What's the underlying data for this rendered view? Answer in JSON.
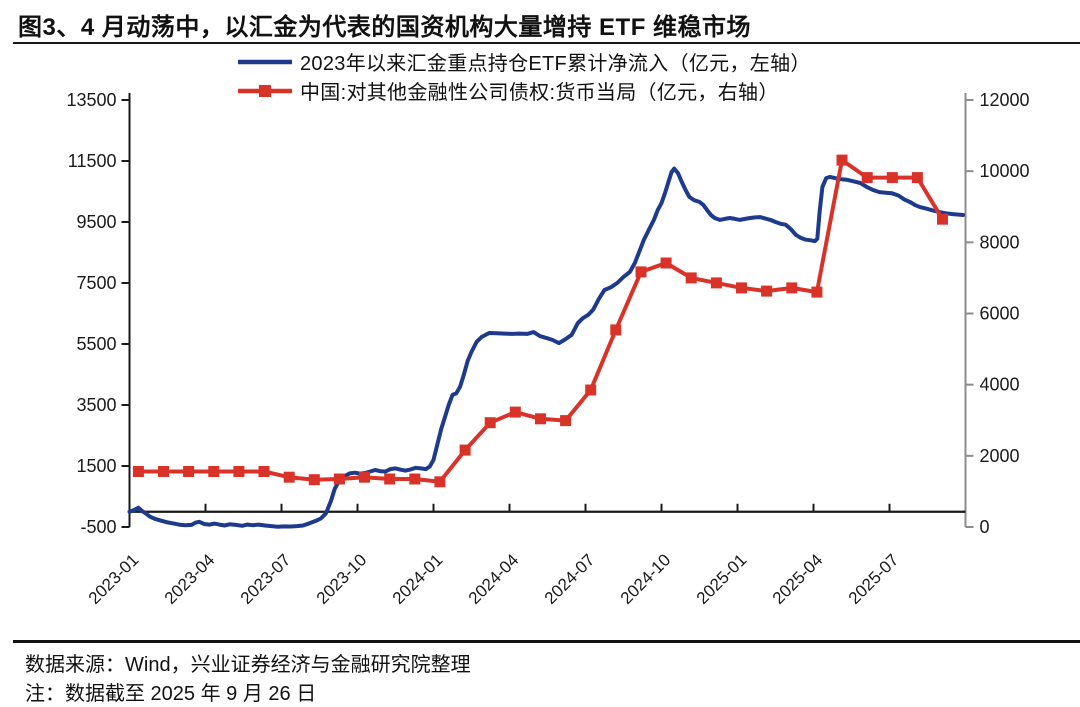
{
  "title": "图3、4 月动荡中，以汇金为代表的国资机构大量增持 ETF 维稳市场",
  "footer": {
    "source": "数据来源：Wind，兴业证券经济与金融研究院整理",
    "note": "注：数据截至 2025 年 9 月 26 日"
  },
  "chart_data": {
    "type": "line",
    "axis_color": "#1a1a1a",
    "right_spine_color": "#8c8c8c",
    "months_span": 33,
    "x_axis": {
      "tick_labels": [
        "2023-01",
        "2023-04",
        "2023-07",
        "2023-10",
        "2024-01",
        "2024-04",
        "2024-07",
        "2024-10",
        "2025-01",
        "2025-04",
        "2025-07"
      ],
      "tick_month_index": [
        0,
        3,
        6,
        9,
        12,
        15,
        18,
        21,
        24,
        27,
        30
      ]
    },
    "left_axis": {
      "min": -500,
      "max": 13500,
      "step": 2000,
      "ticks": [
        13500,
        11500,
        9500,
        7500,
        5500,
        3500,
        1500,
        -500
      ]
    },
    "right_axis": {
      "min": 0,
      "max": 12000,
      "step": 2000,
      "ticks": [
        12000,
        10000,
        8000,
        6000,
        4000,
        2000,
        0
      ]
    },
    "series": [
      {
        "name": "2023年以来汇金重点持仓ETF累计净流入（亿元，左轴）",
        "axis": "left",
        "color": "#1e3a8c",
        "width": 4,
        "marker": "none",
        "points": [
          [
            0,
            0
          ],
          [
            0.2,
            60
          ],
          [
            0.35,
            130
          ],
          [
            0.5,
            20
          ],
          [
            0.65,
            -60
          ],
          [
            0.8,
            -160
          ],
          [
            1.0,
            -230
          ],
          [
            1.2,
            -280
          ],
          [
            1.45,
            -340
          ],
          [
            1.7,
            -380
          ],
          [
            1.95,
            -420
          ],
          [
            2.2,
            -440
          ],
          [
            2.45,
            -430
          ],
          [
            2.6,
            -360
          ],
          [
            2.75,
            -330
          ],
          [
            2.95,
            -400
          ],
          [
            3.15,
            -420
          ],
          [
            3.35,
            -390
          ],
          [
            3.55,
            -420
          ],
          [
            3.75,
            -450
          ],
          [
            3.95,
            -410
          ],
          [
            4.2,
            -430
          ],
          [
            4.45,
            -460
          ],
          [
            4.65,
            -420
          ],
          [
            4.85,
            -440
          ],
          [
            5.1,
            -420
          ],
          [
            5.35,
            -450
          ],
          [
            5.6,
            -470
          ],
          [
            5.85,
            -490
          ],
          [
            6.1,
            -480
          ],
          [
            6.35,
            -485
          ],
          [
            6.6,
            -470
          ],
          [
            6.85,
            -450
          ],
          [
            7.1,
            -380
          ],
          [
            7.35,
            -300
          ],
          [
            7.55,
            -220
          ],
          [
            7.75,
            -60
          ],
          [
            7.95,
            350
          ],
          [
            8.1,
            750
          ],
          [
            8.3,
            1050
          ],
          [
            8.5,
            1170
          ],
          [
            8.7,
            1260
          ],
          [
            8.9,
            1280
          ],
          [
            9.1,
            1250
          ],
          [
            9.3,
            1270
          ],
          [
            9.5,
            1320
          ],
          [
            9.7,
            1370
          ],
          [
            9.9,
            1330
          ],
          [
            10.1,
            1320
          ],
          [
            10.3,
            1400
          ],
          [
            10.5,
            1420
          ],
          [
            10.7,
            1380
          ],
          [
            10.9,
            1350
          ],
          [
            11.1,
            1390
          ],
          [
            11.3,
            1440
          ],
          [
            11.5,
            1420
          ],
          [
            11.7,
            1400
          ],
          [
            11.85,
            1480
          ],
          [
            12.0,
            1700
          ],
          [
            12.15,
            2200
          ],
          [
            12.3,
            2700
          ],
          [
            12.45,
            3100
          ],
          [
            12.6,
            3500
          ],
          [
            12.75,
            3830
          ],
          [
            12.9,
            3880
          ],
          [
            13.05,
            4100
          ],
          [
            13.2,
            4500
          ],
          [
            13.35,
            4950
          ],
          [
            13.5,
            5240
          ],
          [
            13.7,
            5570
          ],
          [
            13.9,
            5730
          ],
          [
            14.2,
            5860
          ],
          [
            14.5,
            5850
          ],
          [
            14.8,
            5840
          ],
          [
            15.1,
            5830
          ],
          [
            15.4,
            5840
          ],
          [
            15.7,
            5830
          ],
          [
            15.95,
            5890
          ],
          [
            16.2,
            5760
          ],
          [
            16.45,
            5700
          ],
          [
            16.7,
            5630
          ],
          [
            16.95,
            5530
          ],
          [
            17.2,
            5650
          ],
          [
            17.45,
            5800
          ],
          [
            17.7,
            6190
          ],
          [
            17.9,
            6350
          ],
          [
            18.1,
            6450
          ],
          [
            18.3,
            6620
          ],
          [
            18.55,
            7010
          ],
          [
            18.75,
            7270
          ],
          [
            19.0,
            7360
          ],
          [
            19.25,
            7500
          ],
          [
            19.5,
            7700
          ],
          [
            19.75,
            7860
          ],
          [
            19.95,
            8160
          ],
          [
            20.1,
            8480
          ],
          [
            20.3,
            8910
          ],
          [
            20.5,
            9240
          ],
          [
            20.7,
            9570
          ],
          [
            20.85,
            9890
          ],
          [
            21.0,
            10120
          ],
          [
            21.15,
            10480
          ],
          [
            21.3,
            10880
          ],
          [
            21.4,
            11140
          ],
          [
            21.5,
            11250
          ],
          [
            21.65,
            11100
          ],
          [
            21.8,
            10810
          ],
          [
            21.95,
            10550
          ],
          [
            22.1,
            10320
          ],
          [
            22.3,
            10210
          ],
          [
            22.5,
            10160
          ],
          [
            22.65,
            10060
          ],
          [
            22.8,
            9890
          ],
          [
            22.95,
            9730
          ],
          [
            23.1,
            9630
          ],
          [
            23.3,
            9570
          ],
          [
            23.5,
            9600
          ],
          [
            23.7,
            9630
          ],
          [
            23.9,
            9600
          ],
          [
            24.1,
            9570
          ],
          [
            24.3,
            9600
          ],
          [
            24.5,
            9630
          ],
          [
            24.7,
            9650
          ],
          [
            24.9,
            9660
          ],
          [
            25.1,
            9610
          ],
          [
            25.3,
            9570
          ],
          [
            25.5,
            9500
          ],
          [
            25.7,
            9440
          ],
          [
            25.9,
            9410
          ],
          [
            26.1,
            9270
          ],
          [
            26.3,
            9080
          ],
          [
            26.5,
            8980
          ],
          [
            26.7,
            8920
          ],
          [
            26.9,
            8900
          ],
          [
            27.05,
            8870
          ],
          [
            27.15,
            8950
          ],
          [
            27.25,
            9890
          ],
          [
            27.35,
            10650
          ],
          [
            27.5,
            10940
          ],
          [
            27.65,
            10980
          ],
          [
            27.85,
            10940
          ],
          [
            28.1,
            10900
          ],
          [
            28.35,
            10880
          ],
          [
            28.6,
            10830
          ],
          [
            28.85,
            10780
          ],
          [
            29.1,
            10650
          ],
          [
            29.35,
            10550
          ],
          [
            29.6,
            10480
          ],
          [
            29.85,
            10460
          ],
          [
            30.1,
            10440
          ],
          [
            30.35,
            10370
          ],
          [
            30.6,
            10230
          ],
          [
            30.8,
            10160
          ],
          [
            31.0,
            10060
          ],
          [
            31.2,
            9990
          ],
          [
            31.45,
            9940
          ],
          [
            31.7,
            9880
          ],
          [
            31.95,
            9830
          ],
          [
            32.2,
            9790
          ],
          [
            32.5,
            9760
          ],
          [
            32.9,
            9730
          ]
        ]
      },
      {
        "name": "中国:对其他金融性公司债权:货币当局（亿元，右轴）",
        "axis": "right",
        "color": "#d93229",
        "width": 4,
        "marker": "square",
        "x_start_month": 0.35,
        "x_step_months": 0.992,
        "months": [
          "2023-01",
          "2023-02",
          "2023-03",
          "2023-04",
          "2023-05",
          "2023-06",
          "2023-07",
          "2023-08",
          "2023-09",
          "2023-10",
          "2023-11",
          "2023-12",
          "2024-01",
          "2024-02",
          "2024-03",
          "2024-04",
          "2024-05",
          "2024-06",
          "2024-07",
          "2024-08",
          "2024-09",
          "2024-10",
          "2024-11",
          "2024-12",
          "2025-01",
          "2025-02",
          "2025-03",
          "2025-04",
          "2025-05",
          "2025-06",
          "2025-07",
          "2025-08",
          "2025-09"
        ],
        "values": [
          1560,
          1560,
          1560,
          1560,
          1560,
          1560,
          1400,
          1330,
          1350,
          1400,
          1350,
          1350,
          1270,
          2160,
          2930,
          3230,
          3040,
          2990,
          3850,
          5540,
          7170,
          7420,
          7000,
          6860,
          6720,
          6630,
          6720,
          6600,
          10310,
          9820,
          9820,
          9820,
          8650
        ]
      }
    ]
  }
}
